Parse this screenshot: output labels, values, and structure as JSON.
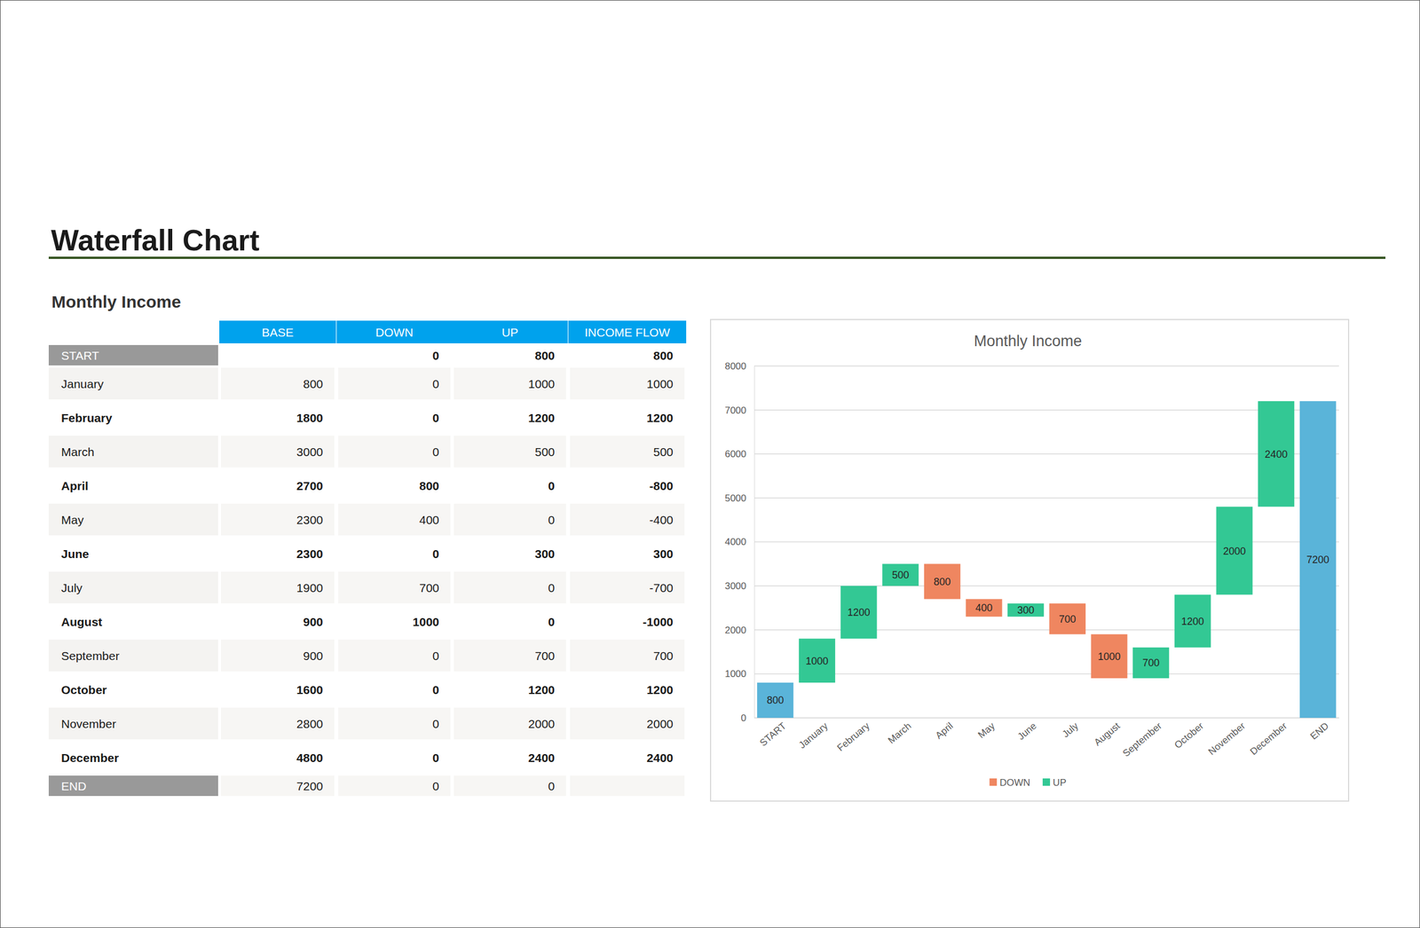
{
  "page": {
    "title": "Waterfall Chart",
    "subtitle": "Monthly Income"
  },
  "table": {
    "columns": [
      "BASE",
      "DOWN",
      "UP",
      "INCOME FLOW"
    ],
    "rows": [
      {
        "label": "START",
        "cells": [
          null,
          0,
          800,
          800
        ]
      },
      {
        "label": "January",
        "cells": [
          800,
          0,
          1000,
          1000
        ]
      },
      {
        "label": "February",
        "cells": [
          1800,
          0,
          1200,
          1200
        ]
      },
      {
        "label": "March",
        "cells": [
          3000,
          0,
          500,
          500
        ]
      },
      {
        "label": "April",
        "cells": [
          2700,
          800,
          0,
          -800
        ]
      },
      {
        "label": "May",
        "cells": [
          2300,
          400,
          0,
          -400
        ]
      },
      {
        "label": "June",
        "cells": [
          2300,
          0,
          300,
          300
        ]
      },
      {
        "label": "July",
        "cells": [
          1900,
          700,
          0,
          -700
        ]
      },
      {
        "label": "August",
        "cells": [
          900,
          1000,
          0,
          -1000
        ]
      },
      {
        "label": "September",
        "cells": [
          900,
          0,
          700,
          700
        ]
      },
      {
        "label": "October",
        "cells": [
          1600,
          0,
          1200,
          1200
        ]
      },
      {
        "label": "November",
        "cells": [
          2800,
          0,
          2000,
          2000
        ]
      },
      {
        "label": "December",
        "cells": [
          4800,
          0,
          2400,
          2400
        ]
      },
      {
        "label": "END",
        "cells": [
          7200,
          0,
          0,
          null
        ]
      }
    ]
  },
  "chart_data": {
    "type": "waterfall",
    "title": "Monthly Income",
    "categories": [
      "START",
      "January",
      "February",
      "March",
      "April",
      "May",
      "June",
      "July",
      "August",
      "September",
      "October",
      "November",
      "December",
      "END"
    ],
    "series": [
      {
        "type": "total",
        "color": "#5ab4d9",
        "values": [
          800,
          null,
          null,
          null,
          null,
          null,
          null,
          null,
          null,
          null,
          null,
          null,
          null,
          7200
        ]
      },
      {
        "name": "DOWN",
        "type": "decrease",
        "color": "#ef8660",
        "values": [
          null,
          null,
          null,
          null,
          800,
          400,
          null,
          700,
          1000,
          null,
          null,
          null,
          null,
          null
        ]
      },
      {
        "name": "UP",
        "type": "increase",
        "color": "#33c894",
        "values": [
          null,
          1000,
          1200,
          500,
          null,
          null,
          300,
          null,
          null,
          700,
          1200,
          2000,
          2400,
          null
        ]
      }
    ],
    "ylim": [
      0,
      8000
    ],
    "yticks": [
      0,
      1000,
      2000,
      3000,
      4000,
      5000,
      6000,
      7000,
      8000
    ],
    "grid": true,
    "data_labels": true,
    "legend": "bottom"
  }
}
